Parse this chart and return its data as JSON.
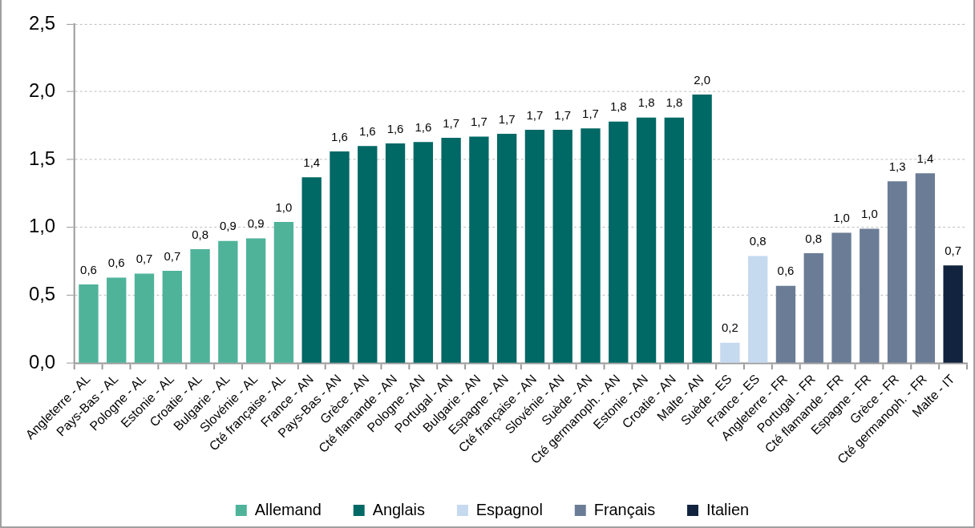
{
  "chart_data": {
    "type": "bar",
    "categories": [
      "Angleterre - AL",
      "Pays-Bas - AL",
      "Pologne - AL",
      "Estonie - AL",
      "Croatie - AL",
      "Bulgarie - AL",
      "Slovénie - AL",
      "Cté française - AL",
      "France - AN",
      "Pays-Bas - AN",
      "Grèce - AN",
      "Cté flamande - AN",
      "Pologne - AN",
      "Portugal - AN",
      "Bulgarie - AN",
      "Espagne - AN",
      "Cté française - AN",
      "Slovénie - AN",
      "Suède - AN",
      "Cté germanoph. - AN",
      "Estonie - AN",
      "Croatie - AN",
      "Malte - AN",
      "Suède - ES",
      "France - ES",
      "Angleterre - FR",
      "Portugal - FR",
      "Cté flamande - FR",
      "Espagne - FR",
      "Grèce - FR",
      "Cté germanoph. - FR",
      "Malte - IT"
    ],
    "series": [
      {
        "name": "Allemand",
        "color": "#4fb39a",
        "values": [
          0.58,
          0.63,
          0.66,
          0.68,
          0.84,
          0.9,
          0.92,
          1.04,
          null,
          null,
          null,
          null,
          null,
          null,
          null,
          null,
          null,
          null,
          null,
          null,
          null,
          null,
          null,
          null,
          null,
          null,
          null,
          null,
          null,
          null,
          null,
          null
        ],
        "value_labels": [
          "0,6",
          "0,6",
          "0,7",
          "0,7",
          "0,8",
          "0,9",
          "0,9",
          "1,0",
          null,
          null,
          null,
          null,
          null,
          null,
          null,
          null,
          null,
          null,
          null,
          null,
          null,
          null,
          null,
          null,
          null,
          null,
          null,
          null,
          null,
          null,
          null,
          null
        ]
      },
      {
        "name": "Anglais",
        "color": "#006865",
        "values": [
          null,
          null,
          null,
          null,
          null,
          null,
          null,
          null,
          1.37,
          1.56,
          1.6,
          1.62,
          1.63,
          1.66,
          1.67,
          1.69,
          1.72,
          1.72,
          1.73,
          1.78,
          1.81,
          1.81,
          1.98,
          null,
          null,
          null,
          null,
          null,
          null,
          null,
          null,
          null
        ],
        "value_labels": [
          null,
          null,
          null,
          null,
          null,
          null,
          null,
          null,
          "1,4",
          "1,6",
          "1,6",
          "1,6",
          "1,6",
          "1,7",
          "1,7",
          "1,7",
          "1,7",
          "1,7",
          "1,7",
          "1,8",
          "1,8",
          "1,8",
          "2,0",
          null,
          null,
          null,
          null,
          null,
          null,
          null,
          null,
          null
        ]
      },
      {
        "name": "Espagnol",
        "color": "#c5d9ef",
        "values": [
          null,
          null,
          null,
          null,
          null,
          null,
          null,
          null,
          null,
          null,
          null,
          null,
          null,
          null,
          null,
          null,
          null,
          null,
          null,
          null,
          null,
          null,
          null,
          0.15,
          0.79,
          null,
          null,
          null,
          null,
          null,
          null,
          null
        ],
        "value_labels": [
          null,
          null,
          null,
          null,
          null,
          null,
          null,
          null,
          null,
          null,
          null,
          null,
          null,
          null,
          null,
          null,
          null,
          null,
          null,
          null,
          null,
          null,
          null,
          "0,2",
          "0,8",
          null,
          null,
          null,
          null,
          null,
          null,
          null
        ]
      },
      {
        "name": "Français",
        "color": "#6b7d96",
        "values": [
          null,
          null,
          null,
          null,
          null,
          null,
          null,
          null,
          null,
          null,
          null,
          null,
          null,
          null,
          null,
          null,
          null,
          null,
          null,
          null,
          null,
          null,
          null,
          null,
          null,
          0.57,
          0.81,
          0.96,
          0.99,
          1.34,
          1.4,
          null
        ],
        "value_labels": [
          null,
          null,
          null,
          null,
          null,
          null,
          null,
          null,
          null,
          null,
          null,
          null,
          null,
          null,
          null,
          null,
          null,
          null,
          null,
          null,
          null,
          null,
          null,
          null,
          null,
          "0,6",
          "0,8",
          "1,0",
          "1,0",
          "1,3",
          "1,4",
          null
        ]
      },
      {
        "name": "Italien",
        "color": "#12233f",
        "values": [
          null,
          null,
          null,
          null,
          null,
          null,
          null,
          null,
          null,
          null,
          null,
          null,
          null,
          null,
          null,
          null,
          null,
          null,
          null,
          null,
          null,
          null,
          null,
          null,
          null,
          null,
          null,
          null,
          null,
          null,
          null,
          0.72
        ],
        "value_labels": [
          null,
          null,
          null,
          null,
          null,
          null,
          null,
          null,
          null,
          null,
          null,
          null,
          null,
          null,
          null,
          null,
          null,
          null,
          null,
          null,
          null,
          null,
          null,
          null,
          null,
          null,
          null,
          null,
          null,
          null,
          null,
          "0,7"
        ]
      }
    ],
    "ylim": [
      0,
      2.5
    ],
    "yticks": [
      {
        "value": 0,
        "label": "0,0"
      },
      {
        "value": 0.5,
        "label": "0,5"
      },
      {
        "value": 1,
        "label": "1,0"
      },
      {
        "value": 1.5,
        "label": "1,5"
      },
      {
        "value": 2,
        "label": "2,0"
      },
      {
        "value": 2.5,
        "label": "2,5"
      }
    ],
    "grid": "y",
    "legend": "bottom"
  }
}
